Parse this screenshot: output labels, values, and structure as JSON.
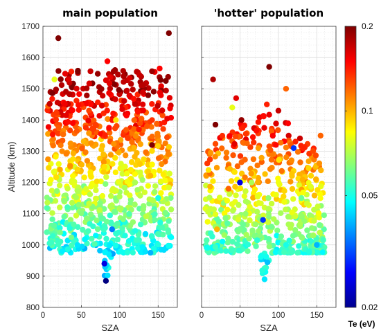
{
  "chart_data": [
    {
      "type": "scatter",
      "title": "main population",
      "xlabel": "SZA",
      "ylabel": "Altitude (km)",
      "xlim": [
        0,
        175
      ],
      "ylim": [
        800,
        1700
      ],
      "xticks": [
        "0",
        "50",
        "100",
        "150"
      ],
      "yticks": [
        "800",
        "900",
        "1000",
        "1100",
        "1200",
        "1300",
        "1400",
        "1500",
        "1600",
        "1700"
      ],
      "grid": true,
      "color_by": "Te (eV)",
      "sample_points": [
        {
          "x": 20,
          "y": 1662,
          "te": 0.2
        },
        {
          "x": 164,
          "y": 1678,
          "te": 0.2
        },
        {
          "x": 84,
          "y": 1588,
          "te": 0.15
        },
        {
          "x": 152,
          "y": 1565,
          "te": 0.15
        },
        {
          "x": 37,
          "y": 1555,
          "te": 0.14
        },
        {
          "x": 15,
          "y": 1530,
          "te": 0.08
        },
        {
          "x": 105,
          "y": 1540,
          "te": 0.18
        },
        {
          "x": 160,
          "y": 1525,
          "te": 0.2
        },
        {
          "x": 130,
          "y": 1450,
          "te": 0.16
        },
        {
          "x": 60,
          "y": 1430,
          "te": 0.13
        },
        {
          "x": 95,
          "y": 1400,
          "te": 0.09
        },
        {
          "x": 142,
          "y": 1320,
          "te": 0.2
        },
        {
          "x": 25,
          "y": 1300,
          "te": 0.11
        },
        {
          "x": 80,
          "y": 1250,
          "te": 0.09
        },
        {
          "x": 120,
          "y": 1200,
          "te": 0.07
        },
        {
          "x": 150,
          "y": 1150,
          "te": 0.05
        },
        {
          "x": 90,
          "y": 1050,
          "te": 0.035
        },
        {
          "x": 45,
          "y": 1000,
          "te": 0.045
        },
        {
          "x": 80,
          "y": 940,
          "te": 0.025
        },
        {
          "x": 82,
          "y": 885,
          "te": 0.02
        },
        {
          "x": 140,
          "y": 975,
          "te": 0.04
        }
      ]
    },
    {
      "type": "scatter",
      "title": "'hotter' population",
      "xlabel": "SZA",
      "ylabel": "",
      "xlim": [
        0,
        175
      ],
      "ylim": [
        800,
        1700
      ],
      "xticks": [
        "0",
        "50",
        "100",
        "150"
      ],
      "grid": true,
      "color_by": "Te (eV)",
      "sample_points": [
        {
          "x": 88,
          "y": 1570,
          "te": 0.2
        },
        {
          "x": 15,
          "y": 1530,
          "te": 0.18
        },
        {
          "x": 45,
          "y": 1470,
          "te": 0.16
        },
        {
          "x": 85,
          "y": 1450,
          "te": 0.14
        },
        {
          "x": 110,
          "y": 1500,
          "te": 0.12
        },
        {
          "x": 40,
          "y": 1440,
          "te": 0.08
        },
        {
          "x": 18,
          "y": 1385,
          "te": 0.2
        },
        {
          "x": 52,
          "y": 1400,
          "te": 0.19
        },
        {
          "x": 100,
          "y": 1430,
          "te": 0.17
        },
        {
          "x": 120,
          "y": 1310,
          "te": 0.03
        },
        {
          "x": 155,
          "y": 1350,
          "te": 0.12
        },
        {
          "x": 65,
          "y": 1200,
          "te": 0.07
        },
        {
          "x": 35,
          "y": 1180,
          "te": 0.12
        },
        {
          "x": 50,
          "y": 1200,
          "te": 0.025
        },
        {
          "x": 130,
          "y": 1150,
          "te": 0.06
        },
        {
          "x": 80,
          "y": 1080,
          "te": 0.03
        },
        {
          "x": 20,
          "y": 1050,
          "te": 0.1
        },
        {
          "x": 110,
          "y": 1000,
          "te": 0.05
        },
        {
          "x": 60,
          "y": 980,
          "te": 0.06
        },
        {
          "x": 82,
          "y": 890,
          "te": 0.045
        },
        {
          "x": 150,
          "y": 1000,
          "te": 0.04
        }
      ]
    }
  ],
  "colorbar": {
    "label": "Te (eV)",
    "scale": "log",
    "range": [
      0.02,
      0.2
    ],
    "ticks": [
      "0.2",
      "0.1",
      "0.05",
      "0.02"
    ],
    "colormap": "jet"
  }
}
